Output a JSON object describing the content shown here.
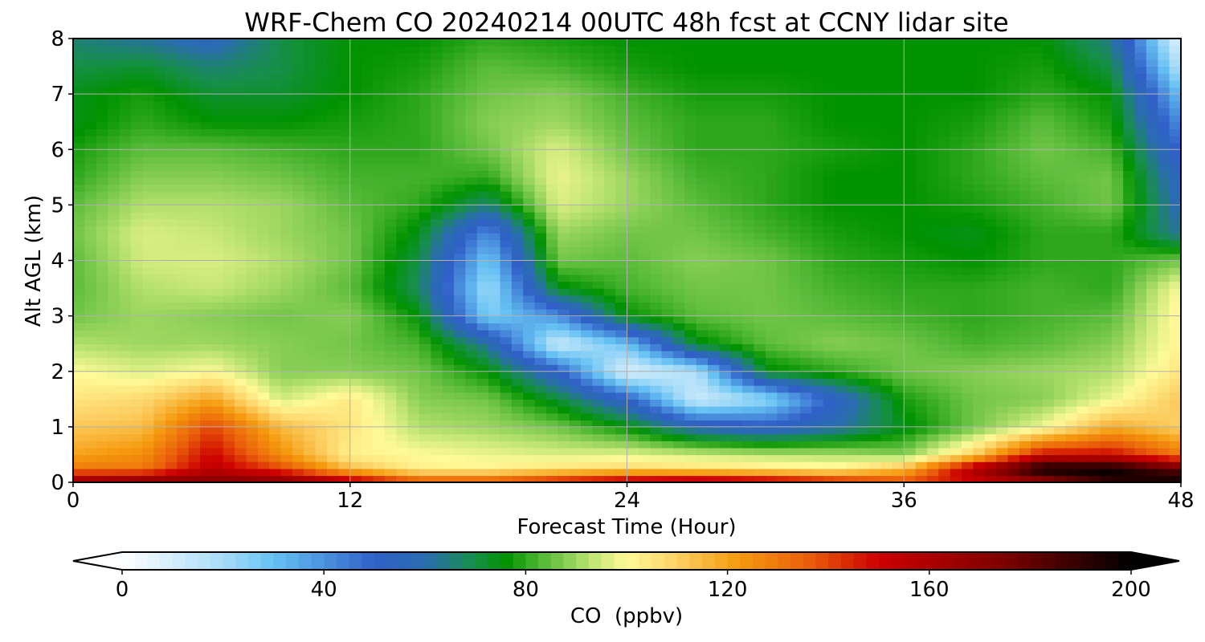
{
  "chart_data": {
    "type": "heatmap",
    "title": "WRF-Chem CO  20240214 00UTC 48h fcst at CCNY lidar site",
    "xlabel": "Forecast Time (Hour)",
    "ylabel": "Alt AGL (km)",
    "xlim": [
      0,
      48
    ],
    "ylim": [
      0,
      8
    ],
    "x_ticks": [
      0,
      12,
      24,
      36,
      48
    ],
    "y_ticks": [
      0,
      1,
      2,
      3,
      4,
      5,
      6,
      7,
      8
    ],
    "grid": true,
    "colorbar": {
      "label": "CO  (ppbv)",
      "range": [
        0,
        200
      ],
      "ticks": [
        0,
        40,
        80,
        120,
        160,
        200
      ],
      "extend": "both",
      "orientation": "horizontal",
      "colors": [
        {
          "value": 0,
          "color": "#ffffff"
        },
        {
          "value": 20,
          "color": "#a8dcf8"
        },
        {
          "value": 30,
          "color": "#66c2f4"
        },
        {
          "value": 50,
          "color": "#3060c8"
        },
        {
          "value": 60,
          "color": "#2a6cb0"
        },
        {
          "value": 70,
          "color": "#168f48"
        },
        {
          "value": 76,
          "color": "#009200"
        },
        {
          "value": 84,
          "color": "#5cbc3c"
        },
        {
          "value": 94,
          "color": "#c8e878"
        },
        {
          "value": 100,
          "color": "#fffa98"
        },
        {
          "value": 110,
          "color": "#fcd064"
        },
        {
          "value": 122,
          "color": "#f59a0e"
        },
        {
          "value": 136,
          "color": "#ea5e0a"
        },
        {
          "value": 150,
          "color": "#cc0000"
        },
        {
          "value": 175,
          "color": "#7c0000"
        },
        {
          "value": 200,
          "color": "#000000"
        }
      ]
    },
    "forecast_hours": [
      0,
      3,
      6,
      9,
      12,
      15,
      18,
      21,
      24,
      27,
      30,
      33,
      36,
      39,
      42,
      45,
      48
    ],
    "altitudes_km": [
      0,
      0.25,
      0.5,
      1,
      1.5,
      2,
      2.5,
      3,
      3.5,
      4,
      4.5,
      5,
      5.5,
      6,
      6.5,
      7,
      7.5,
      8
    ],
    "co_ppbv": [
      [
        170,
        175,
        175,
        175,
        160,
        140,
        140,
        150,
        160,
        165,
        160,
        150,
        140,
        150,
        165,
        190,
        200
      ],
      [
        130,
        130,
        155,
        140,
        115,
        102,
        102,
        106,
        108,
        106,
        104,
        102,
        115,
        160,
        200,
        200,
        180
      ],
      [
        120,
        125,
        150,
        125,
        102,
        100,
        98,
        96,
        97,
        95,
        93,
        92,
        88,
        110,
        150,
        150,
        130
      ],
      [
        112,
        114,
        140,
        115,
        105,
        92,
        90,
        86,
        76,
        58,
        52,
        60,
        74,
        86,
        98,
        118,
        110
      ],
      [
        105,
        108,
        120,
        95,
        104,
        88,
        86,
        72,
        52,
        12,
        22,
        52,
        78,
        86,
        88,
        98,
        112
      ],
      [
        100,
        96,
        100,
        88,
        88,
        86,
        76,
        52,
        8,
        18,
        74,
        80,
        86,
        88,
        90,
        92,
        105
      ],
      [
        92,
        90,
        90,
        88,
        86,
        82,
        62,
        12,
        30,
        74,
        84,
        88,
        86,
        82,
        84,
        88,
        102
      ],
      [
        86,
        90,
        88,
        86,
        88,
        76,
        26,
        40,
        76,
        84,
        86,
        84,
        82,
        80,
        82,
        84,
        102
      ],
      [
        84,
        92,
        94,
        90,
        84,
        68,
        20,
        74,
        82,
        86,
        86,
        82,
        80,
        80,
        82,
        80,
        100
      ],
      [
        84,
        95,
        96,
        92,
        86,
        70,
        28,
        86,
        84,
        88,
        86,
        80,
        78,
        76,
        80,
        80,
        86
      ],
      [
        86,
        96,
        94,
        90,
        86,
        74,
        40,
        90,
        86,
        86,
        82,
        78,
        76,
        74,
        80,
        80,
        62
      ],
      [
        84,
        92,
        92,
        90,
        84,
        80,
        66,
        96,
        90,
        84,
        80,
        76,
        76,
        78,
        82,
        86,
        58
      ],
      [
        80,
        88,
        88,
        86,
        82,
        82,
        80,
        98,
        90,
        82,
        80,
        76,
        76,
        80,
        84,
        86,
        54
      ],
      [
        78,
        84,
        84,
        82,
        80,
        80,
        86,
        96,
        86,
        80,
        80,
        78,
        76,
        80,
        86,
        82,
        48
      ],
      [
        74,
        80,
        76,
        76,
        78,
        80,
        88,
        90,
        84,
        80,
        80,
        76,
        76,
        78,
        84,
        78,
        40
      ],
      [
        74,
        78,
        72,
        72,
        76,
        80,
        86,
        88,
        82,
        78,
        78,
        76,
        76,
        76,
        80,
        76,
        30
      ],
      [
        70,
        72,
        66,
        70,
        76,
        78,
        84,
        82,
        78,
        76,
        76,
        76,
        76,
        76,
        78,
        70,
        16
      ],
      [
        66,
        62,
        56,
        70,
        76,
        76,
        80,
        78,
        76,
        76,
        76,
        76,
        76,
        76,
        76,
        64,
        6
      ]
    ]
  }
}
